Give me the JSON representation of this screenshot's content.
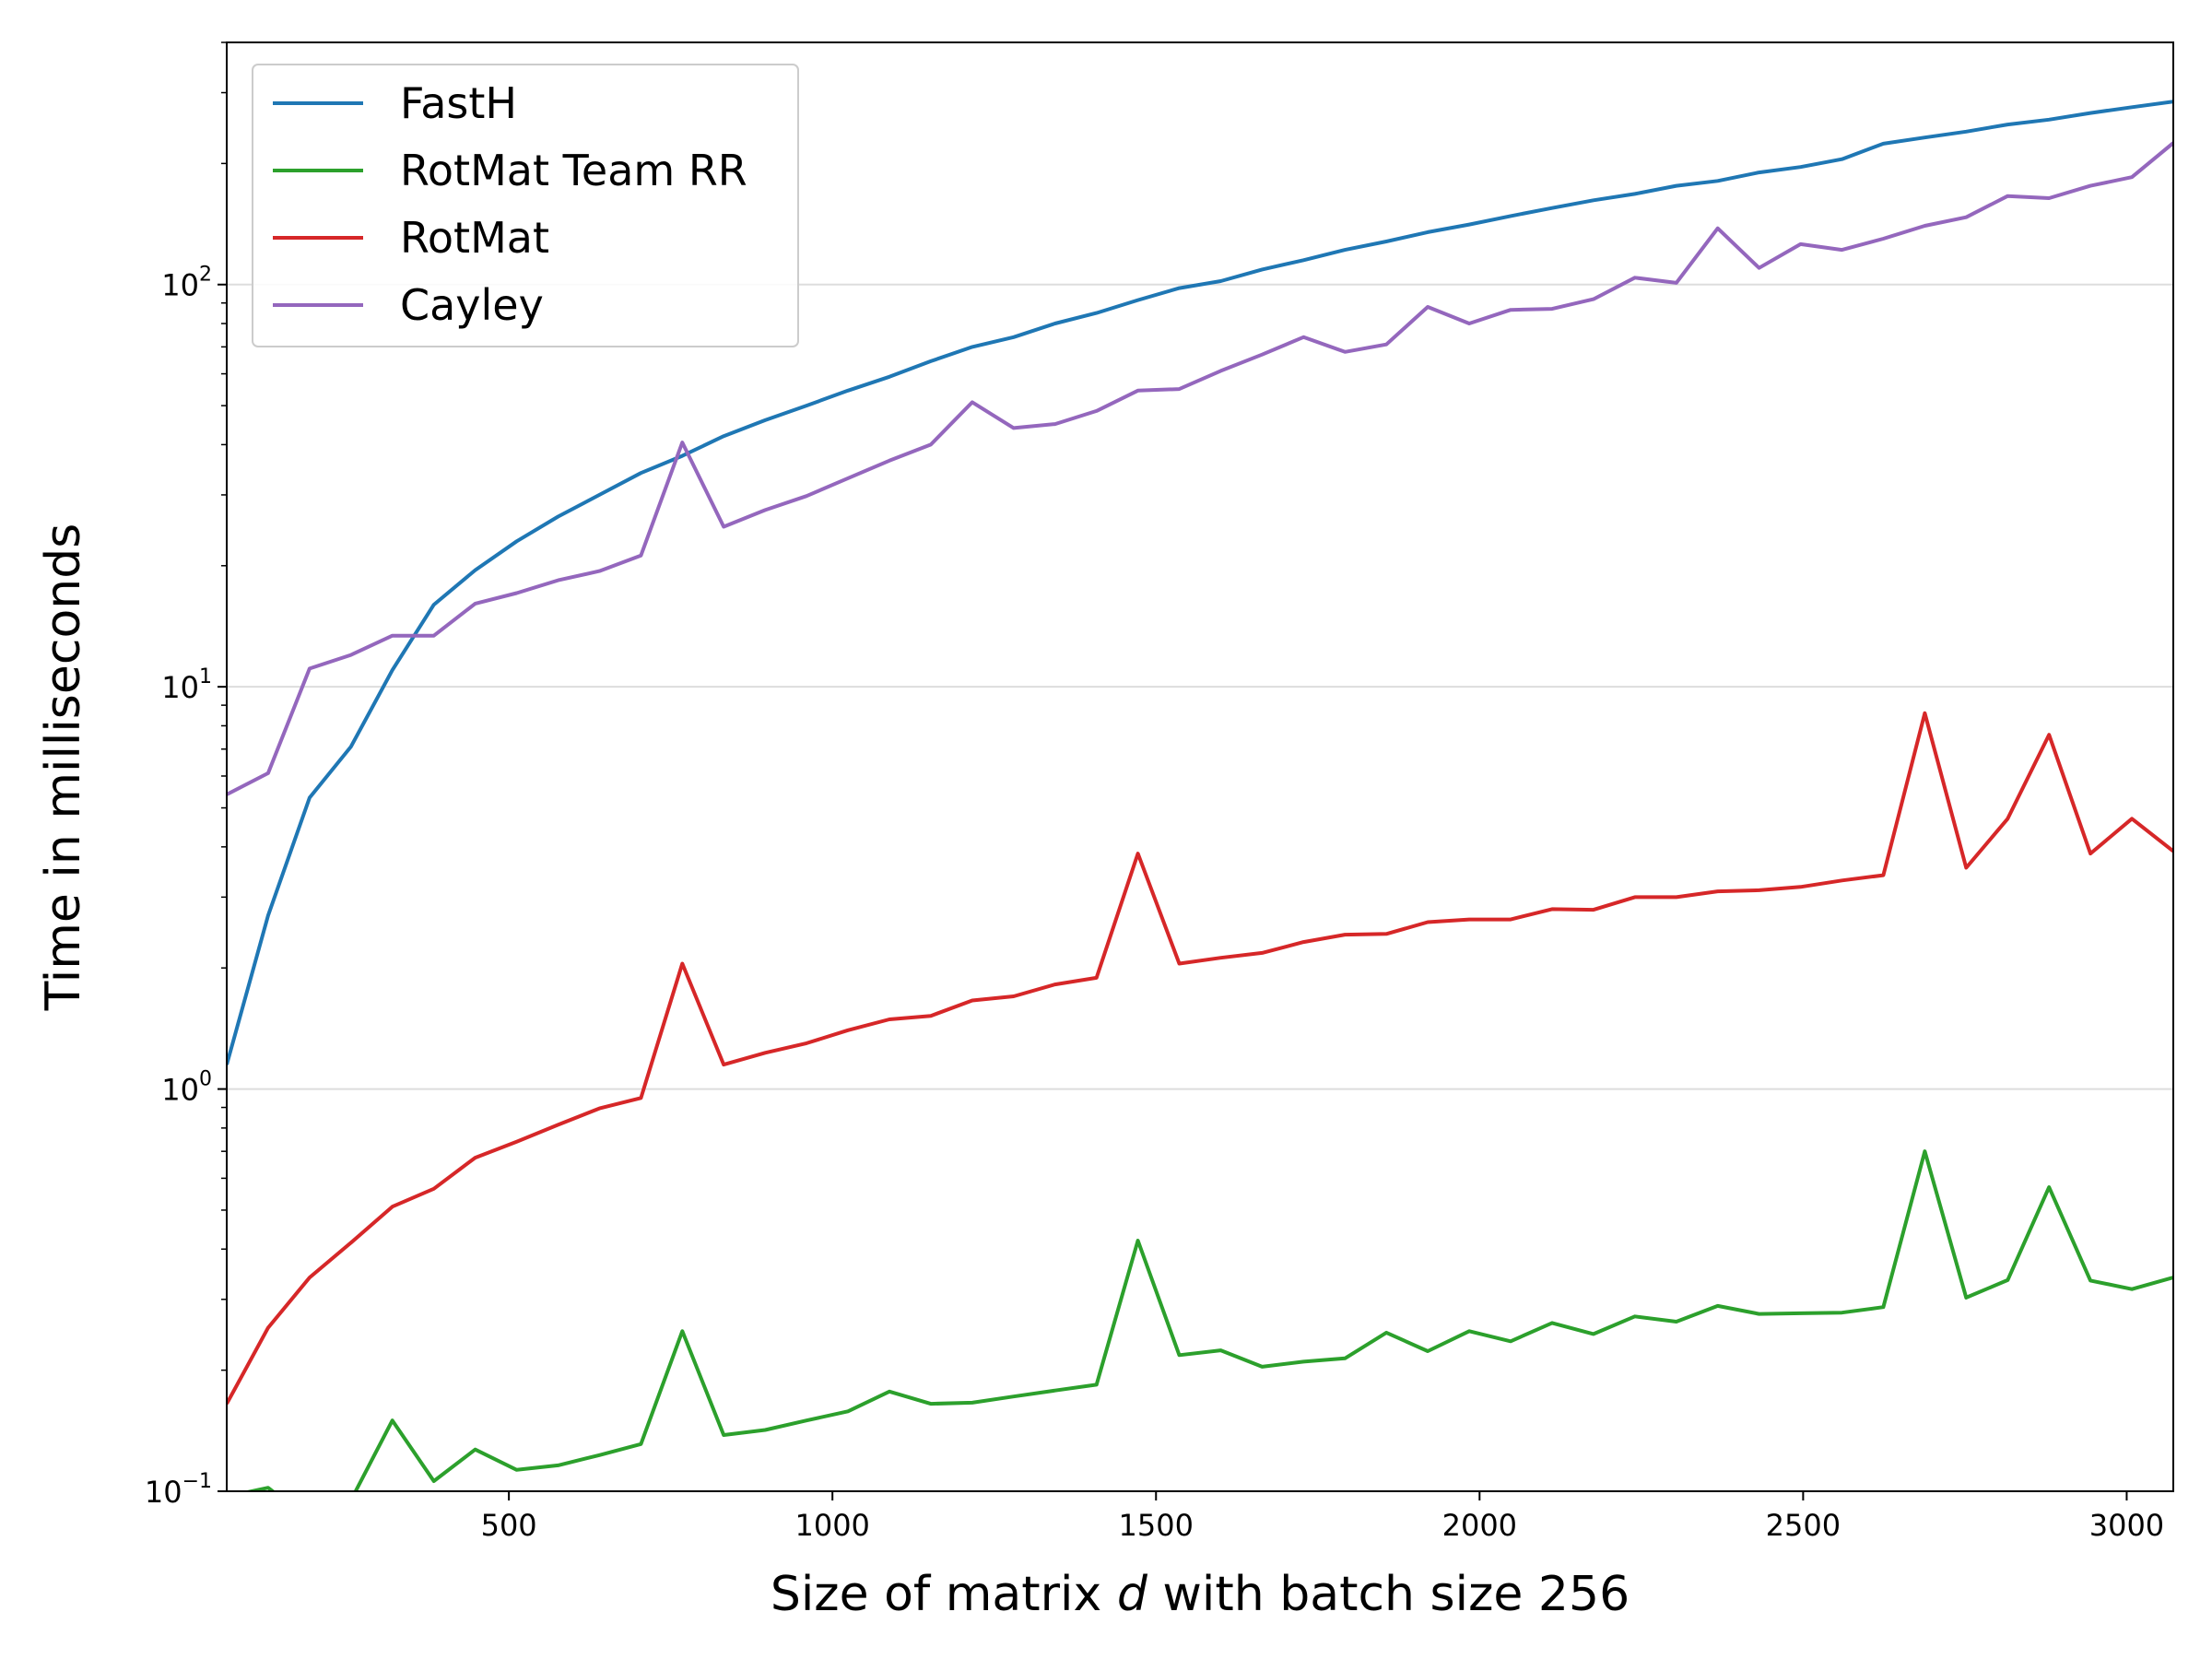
{
  "chart_data": {
    "type": "line",
    "title": "",
    "xlabel": {
      "pre": "Size of matrix ",
      "var": "d",
      "post": " with batch size 256"
    },
    "ylabel": "Time in milliseconds",
    "xscale": "linear",
    "yscale": "log",
    "xlim": [
      64,
      3072
    ],
    "ylim": [
      0.1,
      400
    ],
    "grid": "y-major",
    "legend_position": "top-left",
    "x_ticks": [
      500,
      1000,
      1500,
      2000,
      2500,
      3000
    ],
    "y_ticks": [
      {
        "value": 0.1,
        "base": "10",
        "exp": "−1"
      },
      {
        "value": 1,
        "base": "10",
        "exp": "0"
      },
      {
        "value": 10,
        "base": "10",
        "exp": "1"
      },
      {
        "value": 100,
        "base": "10",
        "exp": "2"
      }
    ],
    "x": [
      64,
      128,
      192,
      256,
      320,
      384,
      448,
      512,
      576,
      640,
      704,
      768,
      832,
      896,
      960,
      1024,
      1088,
      1152,
      1216,
      1280,
      1344,
      1408,
      1472,
      1536,
      1600,
      1664,
      1728,
      1792,
      1856,
      1920,
      1984,
      2048,
      2112,
      2176,
      2240,
      2304,
      2368,
      2432,
      2496,
      2560,
      2624,
      2688,
      2752,
      2816,
      2880,
      2944,
      3008,
      3072
    ],
    "series": [
      {
        "name": "FastH",
        "color": "#1f77b4",
        "values": [
          1.15,
          2.7,
          5.3,
          7.1,
          11,
          16,
          19.5,
          23,
          26.5,
          30,
          34,
          37.5,
          42,
          46,
          50,
          54.5,
          59,
          64.5,
          70,
          74,
          80,
          85,
          91.5,
          98,
          102,
          109,
          115,
          122,
          128,
          135,
          141,
          148,
          155,
          162,
          168,
          176,
          181,
          190,
          196,
          205,
          224,
          232,
          240,
          250,
          257,
          267,
          276,
          285
        ]
      },
      {
        "name": "RotMat Team RR",
        "color": "#2ca02c",
        "values": [
          0.097,
          0.102,
          0.085,
          0.095,
          0.15,
          0.106,
          0.127,
          0.113,
          0.116,
          0.123,
          0.131,
          0.25,
          0.138,
          0.142,
          0.15,
          0.158,
          0.177,
          0.165,
          0.166,
          0.172,
          0.178,
          0.184,
          0.42,
          0.218,
          0.224,
          0.204,
          0.21,
          0.214,
          0.248,
          0.223,
          0.25,
          0.236,
          0.262,
          0.246,
          0.272,
          0.264,
          0.289,
          0.276,
          0.277,
          0.278,
          0.287,
          0.7,
          0.303,
          0.335,
          0.57,
          0.334,
          0.318,
          0.34
        ]
      },
      {
        "name": "RotMat",
        "color": "#d62728",
        "values": [
          0.165,
          0.255,
          0.34,
          0.415,
          0.51,
          0.565,
          0.675,
          0.74,
          0.815,
          0.895,
          0.95,
          2.05,
          1.15,
          1.23,
          1.3,
          1.4,
          1.49,
          1.52,
          1.66,
          1.7,
          1.82,
          1.89,
          3.85,
          2.05,
          2.12,
          2.18,
          2.32,
          2.42,
          2.43,
          2.6,
          2.64,
          2.64,
          2.8,
          2.79,
          3.0,
          3.0,
          3.1,
          3.12,
          3.18,
          3.3,
          3.4,
          8.6,
          3.55,
          4.7,
          7.6,
          3.85,
          4.7,
          3.9
        ]
      },
      {
        "name": "Cayley",
        "color": "#9467bd",
        "values": [
          5.4,
          6.1,
          11.1,
          12,
          13.4,
          13.4,
          16.1,
          17.1,
          18.4,
          19.4,
          21.2,
          40.5,
          25,
          27.5,
          29.8,
          33,
          36.5,
          40,
          51,
          44,
          45,
          48.5,
          54.5,
          55,
          61,
          67,
          74,
          68,
          71,
          88,
          80,
          86.5,
          87,
          92,
          104,
          101,
          138,
          110,
          126,
          122,
          130,
          140,
          147,
          166,
          164,
          176,
          185,
          225
        ]
      }
    ]
  }
}
